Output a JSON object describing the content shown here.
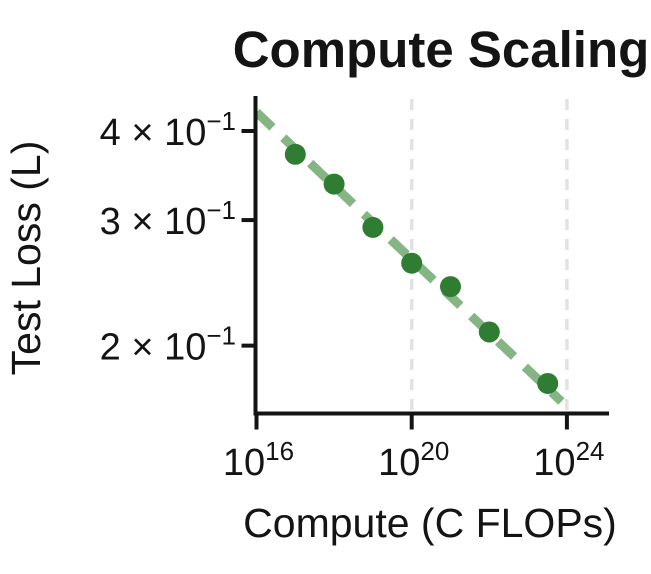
{
  "chart_data": {
    "type": "scatter",
    "title": "Compute Scaling",
    "xlabel": "Compute (C FLOPs)",
    "ylabel": "Test Loss (L)",
    "x_scale": "log",
    "y_scale": "log",
    "xlim": [
      1e+16,
      1.2e+25
    ],
    "ylim": [
      0.16,
      0.452
    ],
    "grid": "vertical-dashed-only",
    "legend": "none",
    "points": [
      {
        "compute": 1e+17,
        "loss": 0.371
      },
      {
        "compute": 1e+18,
        "loss": 0.337
      },
      {
        "compute": 1e+19,
        "loss": 0.293
      },
      {
        "compute": 1e+20,
        "loss": 0.261
      },
      {
        "compute": 1e+21,
        "loss": 0.242
      },
      {
        "compute": 1e+22,
        "loss": 0.209
      },
      {
        "compute": 3.2e+23,
        "loss": 0.177
      }
    ],
    "trend_line": {
      "style": "dashed",
      "x": [
        1e+16,
        7.2e+23
      ],
      "y": [
        0.425,
        0.167
      ]
    },
    "gridlines_x": [
      1e+20,
      1e+24
    ],
    "xticks": [
      {
        "value": 1e+16,
        "base": "10",
        "exp": "16"
      },
      {
        "value": 1e+20,
        "base": "10",
        "exp": "20"
      },
      {
        "value": 1e+24,
        "base": "10",
        "exp": "24"
      }
    ],
    "yticks": [
      {
        "value": 0.4,
        "prefix": "4 × 10",
        "exp": "−1"
      },
      {
        "value": 0.3,
        "prefix": "3 × 10",
        "exp": "−1"
      },
      {
        "value": 0.2,
        "prefix": "2 × 10",
        "exp": "−1"
      }
    ],
    "colors": {
      "point": "#2e7d32",
      "trend": "#85b584",
      "grid": "#e2e2e2",
      "axis": "#141414",
      "text": "#141414",
      "background": "#ffffff"
    }
  }
}
